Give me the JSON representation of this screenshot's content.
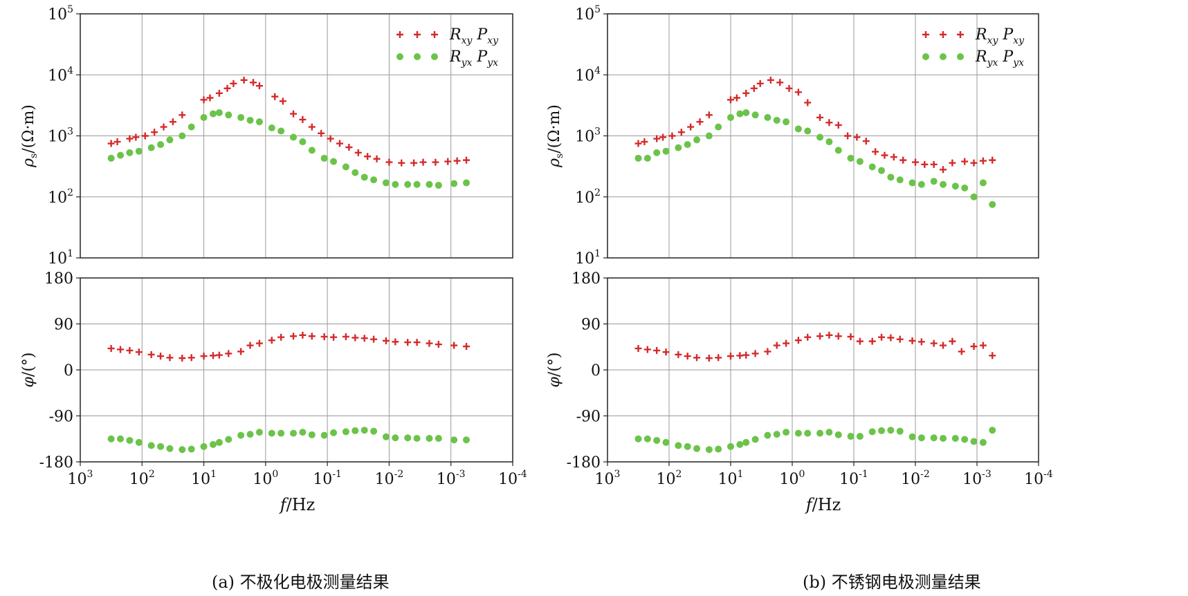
{
  "colors": {
    "xy": "#d42a2a",
    "yx": "#6cc34a",
    "frame": "#222222",
    "grid": "#999999"
  },
  "legend": {
    "xy": {
      "r_base": "R",
      "r_sub": "xy",
      "p_base": "P",
      "p_sub": "xy"
    },
    "yx": {
      "r_base": "R",
      "r_sub": "yx",
      "p_base": "P",
      "p_sub": "yx"
    }
  },
  "captions": {
    "a": "(a) 不极化电极测量结果",
    "b": "(b) 不锈钢电极测量结果"
  },
  "chart_data": [
    {
      "type": "scatter",
      "title": "(a) 不极化电极测量结果",
      "x_axis": {
        "label_italic": "f",
        "label_unit": "/Hz",
        "scale": "log",
        "reversed": true,
        "log_range": [
          3,
          -4
        ],
        "tick_labels": [
          {
            "base": "10",
            "exp": "3"
          },
          {
            "base": "10",
            "exp": "2"
          },
          {
            "base": "10",
            "exp": "1"
          },
          {
            "base": "10",
            "exp": "0"
          },
          {
            "base": "10",
            "exp": "-1"
          },
          {
            "base": "10",
            "exp": "-2"
          },
          {
            "base": "10",
            "exp": "-3"
          },
          {
            "base": "10",
            "exp": "-4"
          }
        ]
      },
      "resistivity": {
        "ylabel_symbol": "ρ",
        "ylabel_sub": "s",
        "ylabel_unit": "/(Ω·m)",
        "scale": "log",
        "log_range": [
          1,
          5
        ],
        "tick_labels": [
          {
            "base": "10",
            "exp": "1"
          },
          {
            "base": "10",
            "exp": "2"
          },
          {
            "base": "10",
            "exp": "3"
          },
          {
            "base": "10",
            "exp": "4"
          },
          {
            "base": "10",
            "exp": "5"
          }
        ],
        "series": [
          {
            "name": "Rxy Pxy",
            "marker": "plus",
            "log_f": [
              2.5,
              2.4,
              2.2,
              2.1,
              1.95,
              1.8,
              1.65,
              1.5,
              1.35,
              1.0,
              0.9,
              0.75,
              0.62,
              0.52,
              0.35,
              0.2,
              0.1,
              -0.15,
              -0.28,
              -0.45,
              -0.6,
              -0.75,
              -0.9,
              -1.05,
              -1.2,
              -1.35,
              -1.5,
              -1.65,
              -1.8,
              -2.0,
              -2.2,
              -2.4,
              -2.55,
              -2.75,
              -2.95,
              -3.1,
              -3.25
            ],
            "values": [
              750,
              800,
              900,
              950,
              1000,
              1150,
              1400,
              1700,
              2200,
              3900,
              4200,
              5000,
              6000,
              7200,
              8200,
              7500,
              6600,
              4400,
              3700,
              2300,
              1850,
              1400,
              1100,
              900,
              750,
              650,
              530,
              460,
              420,
              370,
              360,
              360,
              370,
              370,
              380,
              390,
              400
            ]
          },
          {
            "name": "Ryx Pyx",
            "marker": "dot",
            "log_f": [
              2.5,
              2.35,
              2.2,
              2.05,
              1.85,
              1.7,
              1.55,
              1.35,
              1.2,
              1.0,
              0.85,
              0.75,
              0.6,
              0.4,
              0.25,
              0.1,
              -0.1,
              -0.25,
              -0.45,
              -0.6,
              -0.75,
              -0.95,
              -1.1,
              -1.3,
              -1.45,
              -1.6,
              -1.75,
              -1.95,
              -2.1,
              -2.3,
              -2.45,
              -2.65,
              -2.8,
              -3.05,
              -3.25
            ],
            "values": [
              430,
              480,
              530,
              560,
              640,
              720,
              860,
              1000,
              1400,
              2000,
              2300,
              2400,
              2200,
              2000,
              1800,
              1700,
              1350,
              1200,
              950,
              800,
              580,
              430,
              380,
              310,
              250,
              210,
              190,
              170,
              160,
              160,
              160,
              160,
              155,
              165,
              170
            ]
          }
        ]
      },
      "phase": {
        "ylabel_symbol": "φ",
        "ylabel_unit": "/(°)",
        "range": [
          -180,
          180
        ],
        "tick_labels": [
          "180",
          "90",
          "0",
          "-90",
          "-180"
        ],
        "series": [
          {
            "name": "Rxy Pxy",
            "marker": "plus",
            "log_f": [
              2.5,
              2.35,
              2.2,
              2.05,
              1.85,
              1.7,
              1.55,
              1.35,
              1.2,
              1.0,
              0.85,
              0.75,
              0.6,
              0.4,
              0.25,
              0.1,
              -0.1,
              -0.25,
              -0.45,
              -0.6,
              -0.75,
              -0.95,
              -1.1,
              -1.3,
              -1.45,
              -1.6,
              -1.75,
              -1.95,
              -2.1,
              -2.3,
              -2.45,
              -2.65,
              -2.8,
              -3.05,
              -3.25
            ],
            "values": [
              42,
              40,
              38,
              35,
              30,
              27,
              24,
              23,
              24,
              27,
              28,
              29,
              32,
              36,
              48,
              52,
              58,
              64,
              66,
              68,
              66,
              65,
              64,
              65,
              63,
              62,
              60,
              57,
              55,
              54,
              54,
              52,
              50,
              48,
              46
            ]
          },
          {
            "name": "Ryx Pyx",
            "marker": "dot",
            "log_f": [
              2.5,
              2.35,
              2.2,
              2.05,
              1.85,
              1.7,
              1.55,
              1.35,
              1.2,
              1.0,
              0.85,
              0.75,
              0.6,
              0.4,
              0.25,
              0.1,
              -0.1,
              -0.25,
              -0.45,
              -0.6,
              -0.75,
              -0.95,
              -1.1,
              -1.3,
              -1.45,
              -1.6,
              -1.75,
              -1.95,
              -2.1,
              -2.3,
              -2.45,
              -2.65,
              -2.8,
              -3.05,
              -3.25
            ],
            "values": [
              -135,
              -135,
              -138,
              -142,
              -148,
              -150,
              -154,
              -156,
              -155,
              -150,
              -146,
              -142,
              -136,
              -128,
              -126,
              -122,
              -124,
              -124,
              -124,
              -122,
              -127,
              -128,
              -123,
              -121,
              -119,
              -118,
              -120,
              -131,
              -133,
              -133,
              -134,
              -134,
              -134,
              -137,
              -137
            ]
          }
        ]
      }
    },
    {
      "type": "scatter",
      "title": "(b) 不锈钢电极测量结果",
      "x_axis": {
        "label_italic": "f",
        "label_unit": "/Hz",
        "scale": "log",
        "reversed": true,
        "log_range": [
          3,
          -4
        ],
        "tick_labels": [
          {
            "base": "10",
            "exp": "3"
          },
          {
            "base": "10",
            "exp": "2"
          },
          {
            "base": "10",
            "exp": "1"
          },
          {
            "base": "10",
            "exp": "0"
          },
          {
            "base": "10",
            "exp": "-1"
          },
          {
            "base": "10",
            "exp": "-2"
          },
          {
            "base": "10",
            "exp": "-3"
          },
          {
            "base": "10",
            "exp": "-4"
          }
        ]
      },
      "resistivity": {
        "ylabel_symbol": "ρ",
        "ylabel_sub": "s",
        "ylabel_unit": "/(Ω·m)",
        "scale": "log",
        "log_range": [
          1,
          5
        ],
        "tick_labels": [
          {
            "base": "10",
            "exp": "1"
          },
          {
            "base": "10",
            "exp": "2"
          },
          {
            "base": "10",
            "exp": "3"
          },
          {
            "base": "10",
            "exp": "4"
          },
          {
            "base": "10",
            "exp": "5"
          }
        ],
        "series": [
          {
            "name": "Rxy Pxy",
            "marker": "plus",
            "log_f": [
              2.5,
              2.4,
              2.2,
              2.1,
              1.95,
              1.8,
              1.65,
              1.5,
              1.35,
              1.0,
              0.9,
              0.75,
              0.62,
              0.52,
              0.35,
              0.2,
              0.05,
              -0.1,
              -0.25,
              -0.45,
              -0.6,
              -0.75,
              -0.9,
              -1.05,
              -1.2,
              -1.35,
              -1.5,
              -1.65,
              -1.8,
              -2.0,
              -2.15,
              -2.3,
              -2.45,
              -2.6,
              -2.8,
              -2.95,
              -3.1,
              -3.25
            ],
            "values": [
              750,
              800,
              900,
              950,
              1000,
              1150,
              1400,
              1700,
              2200,
              3900,
              4200,
              5000,
              6000,
              7200,
              8200,
              7500,
              6000,
              5200,
              3500,
              2000,
              1650,
              1500,
              1000,
              950,
              820,
              550,
              480,
              450,
              400,
              370,
              340,
              340,
              280,
              360,
              380,
              360,
              390,
              400
            ]
          },
          {
            "name": "Ryx Pyx",
            "marker": "dot",
            "log_f": [
              2.5,
              2.35,
              2.2,
              2.05,
              1.85,
              1.7,
              1.55,
              1.35,
              1.2,
              1.0,
              0.85,
              0.75,
              0.6,
              0.4,
              0.25,
              0.1,
              -0.1,
              -0.25,
              -0.45,
              -0.6,
              -0.75,
              -0.95,
              -1.1,
              -1.3,
              -1.45,
              -1.6,
              -1.75,
              -1.95,
              -2.1,
              -2.3,
              -2.45,
              -2.65,
              -2.8,
              -2.95,
              -3.1,
              -3.25
            ],
            "values": [
              430,
              430,
              530,
              560,
              640,
              720,
              860,
              1000,
              1400,
              2000,
              2300,
              2400,
              2200,
              2000,
              1800,
              1700,
              1300,
              1200,
              950,
              800,
              580,
              430,
              380,
              310,
              270,
              210,
              190,
              170,
              160,
              180,
              160,
              150,
              140,
              100,
              170,
              75
            ]
          }
        ]
      },
      "phase": {
        "ylabel_symbol": "φ",
        "ylabel_unit": "/(°)",
        "range": [
          -180,
          180
        ],
        "tick_labels": [
          "180",
          "90",
          "0",
          "-90",
          "-180"
        ],
        "series": [
          {
            "name": "Rxy Pxy",
            "marker": "plus",
            "log_f": [
              2.5,
              2.35,
              2.2,
              2.05,
              1.85,
              1.7,
              1.55,
              1.35,
              1.2,
              1.0,
              0.85,
              0.75,
              0.6,
              0.4,
              0.25,
              0.1,
              -0.1,
              -0.25,
              -0.45,
              -0.6,
              -0.75,
              -0.95,
              -1.1,
              -1.3,
              -1.45,
              -1.6,
              -1.75,
              -1.95,
              -2.1,
              -2.3,
              -2.45,
              -2.6,
              -2.75,
              -2.95,
              -3.1,
              -3.25
            ],
            "values": [
              42,
              40,
              38,
              35,
              30,
              27,
              24,
              23,
              24,
              27,
              28,
              29,
              32,
              36,
              48,
              52,
              58,
              64,
              66,
              68,
              66,
              65,
              56,
              56,
              64,
              63,
              60,
              57,
              55,
              52,
              48,
              56,
              36,
              46,
              48,
              28
            ]
          },
          {
            "name": "Ryx Pyx",
            "marker": "dot",
            "log_f": [
              2.5,
              2.35,
              2.2,
              2.05,
              1.85,
              1.7,
              1.55,
              1.35,
              1.2,
              1.0,
              0.85,
              0.75,
              0.6,
              0.4,
              0.25,
              0.1,
              -0.1,
              -0.25,
              -0.45,
              -0.6,
              -0.75,
              -0.95,
              -1.1,
              -1.3,
              -1.45,
              -1.6,
              -1.75,
              -1.95,
              -2.1,
              -2.3,
              -2.45,
              -2.65,
              -2.8,
              -2.95,
              -3.1,
              -3.25
            ],
            "values": [
              -135,
              -135,
              -138,
              -142,
              -148,
              -150,
              -154,
              -156,
              -155,
              -150,
              -146,
              -142,
              -136,
              -128,
              -126,
              -122,
              -124,
              -124,
              -124,
              -122,
              -127,
              -130,
              -130,
              -121,
              -119,
              -118,
              -120,
              -131,
              -133,
              -133,
              -134,
              -134,
              -136,
              -140,
              -142,
              -118
            ]
          }
        ]
      }
    }
  ]
}
